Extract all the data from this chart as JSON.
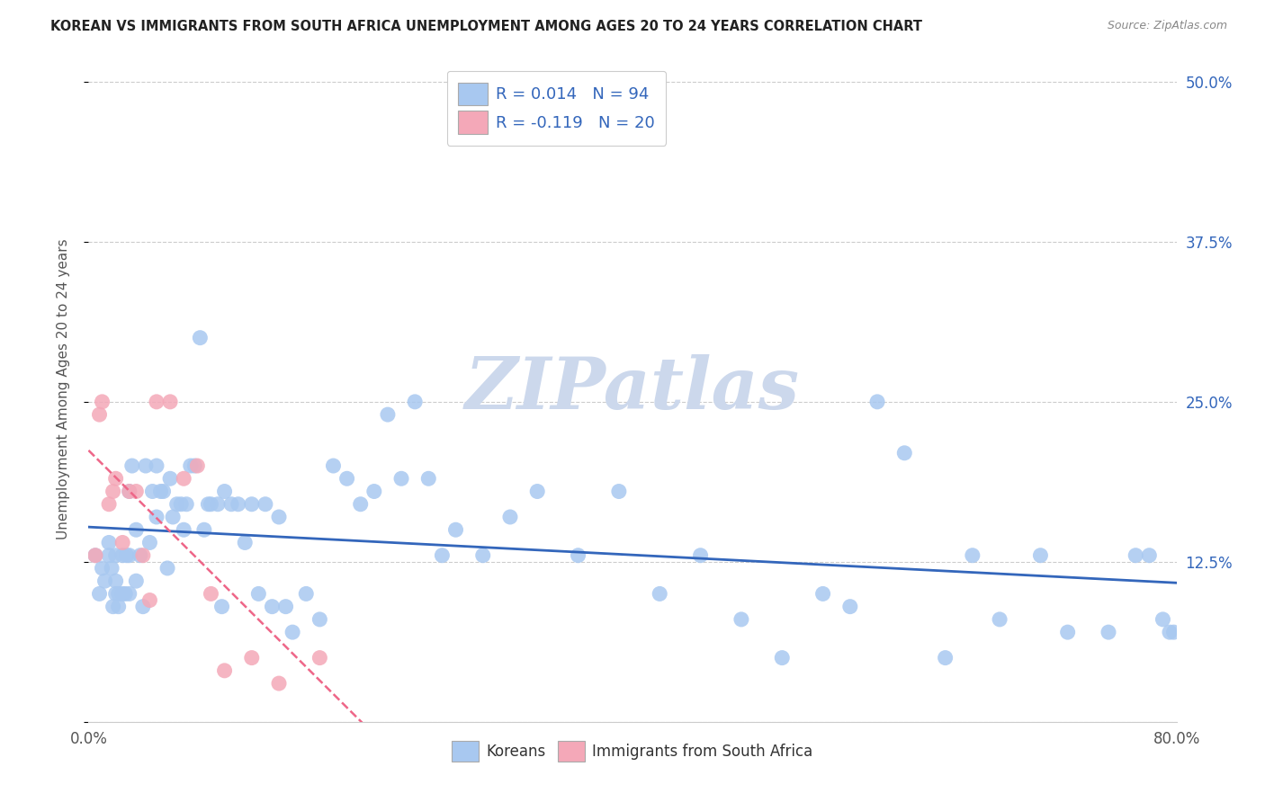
{
  "title": "KOREAN VS IMMIGRANTS FROM SOUTH AFRICA UNEMPLOYMENT AMONG AGES 20 TO 24 YEARS CORRELATION CHART",
  "source": "Source: ZipAtlas.com",
  "ylabel": "Unemployment Among Ages 20 to 24 years",
  "xlim": [
    0.0,
    0.8
  ],
  "ylim": [
    0.0,
    0.52
  ],
  "xticks": [
    0.0,
    0.1,
    0.2,
    0.3,
    0.4,
    0.5,
    0.6,
    0.7,
    0.8
  ],
  "xticklabels": [
    "0.0%",
    "",
    "",
    "",
    "",
    "",
    "",
    "",
    "80.0%"
  ],
  "yticks": [
    0.0,
    0.125,
    0.25,
    0.375,
    0.5
  ],
  "yticklabels": [
    "",
    "12.5%",
    "25.0%",
    "37.5%",
    "50.0%"
  ],
  "korean_R": 0.014,
  "korean_N": 94,
  "sa_R": -0.119,
  "sa_N": 20,
  "korean_color": "#a8c8f0",
  "sa_color": "#f4a8b8",
  "korean_line_color": "#3366bb",
  "sa_line_color": "#ee6688",
  "legend_label_korean": "Koreans",
  "legend_label_sa": "Immigrants from South Africa",
  "watermark": "ZIPatlas",
  "watermark_color_zip": "#c8d8ee",
  "watermark_color_atlas": "#c8d8b8",
  "background_color": "#ffffff",
  "grid_color": "#cccccc",
  "title_color": "#222222",
  "legend_text_color": "#000000",
  "legend_value_color": "#3366bb",
  "right_ytick_color": "#3366bb",
  "korean_x": [
    0.005,
    0.008,
    0.01,
    0.012,
    0.015,
    0.015,
    0.017,
    0.018,
    0.02,
    0.02,
    0.02,
    0.022,
    0.022,
    0.025,
    0.025,
    0.027,
    0.028,
    0.03,
    0.03,
    0.03,
    0.032,
    0.035,
    0.035,
    0.038,
    0.04,
    0.042,
    0.045,
    0.047,
    0.05,
    0.05,
    0.053,
    0.055,
    0.058,
    0.06,
    0.062,
    0.065,
    0.068,
    0.07,
    0.072,
    0.075,
    0.078,
    0.082,
    0.085,
    0.088,
    0.09,
    0.095,
    0.098,
    0.1,
    0.105,
    0.11,
    0.115,
    0.12,
    0.125,
    0.13,
    0.135,
    0.14,
    0.145,
    0.15,
    0.16,
    0.17,
    0.18,
    0.19,
    0.2,
    0.21,
    0.22,
    0.23,
    0.24,
    0.25,
    0.26,
    0.27,
    0.29,
    0.31,
    0.33,
    0.36,
    0.39,
    0.42,
    0.45,
    0.48,
    0.51,
    0.54,
    0.56,
    0.58,
    0.6,
    0.63,
    0.65,
    0.67,
    0.7,
    0.72,
    0.75,
    0.77,
    0.78,
    0.79,
    0.795,
    0.798
  ],
  "korean_y": [
    0.13,
    0.1,
    0.12,
    0.11,
    0.13,
    0.14,
    0.12,
    0.09,
    0.11,
    0.1,
    0.13,
    0.1,
    0.09,
    0.1,
    0.13,
    0.1,
    0.13,
    0.18,
    0.13,
    0.1,
    0.2,
    0.15,
    0.11,
    0.13,
    0.09,
    0.2,
    0.14,
    0.18,
    0.2,
    0.16,
    0.18,
    0.18,
    0.12,
    0.19,
    0.16,
    0.17,
    0.17,
    0.15,
    0.17,
    0.2,
    0.2,
    0.3,
    0.15,
    0.17,
    0.17,
    0.17,
    0.09,
    0.18,
    0.17,
    0.17,
    0.14,
    0.17,
    0.1,
    0.17,
    0.09,
    0.16,
    0.09,
    0.07,
    0.1,
    0.08,
    0.2,
    0.19,
    0.17,
    0.18,
    0.24,
    0.19,
    0.25,
    0.19,
    0.13,
    0.15,
    0.13,
    0.16,
    0.18,
    0.13,
    0.18,
    0.1,
    0.13,
    0.08,
    0.05,
    0.1,
    0.09,
    0.25,
    0.21,
    0.05,
    0.13,
    0.08,
    0.13,
    0.07,
    0.07,
    0.13,
    0.13,
    0.08,
    0.07,
    0.07
  ],
  "sa_x": [
    0.005,
    0.008,
    0.01,
    0.015,
    0.018,
    0.02,
    0.025,
    0.03,
    0.035,
    0.04,
    0.045,
    0.05,
    0.06,
    0.07,
    0.08,
    0.09,
    0.1,
    0.12,
    0.14,
    0.17
  ],
  "sa_y": [
    0.13,
    0.24,
    0.25,
    0.17,
    0.18,
    0.19,
    0.14,
    0.18,
    0.18,
    0.13,
    0.095,
    0.25,
    0.25,
    0.19,
    0.2,
    0.1,
    0.04,
    0.05,
    0.03,
    0.05
  ]
}
